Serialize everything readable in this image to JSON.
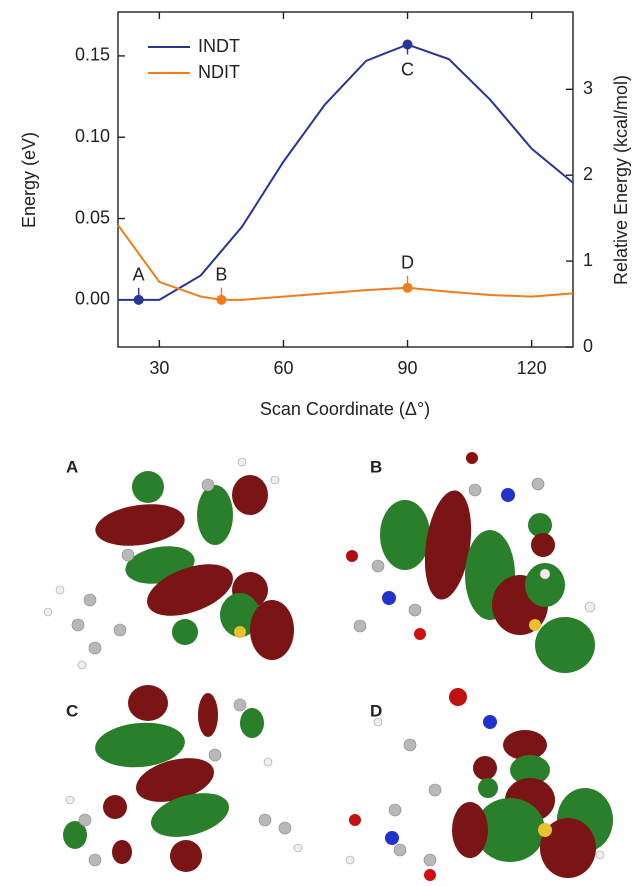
{
  "chart_data": {
    "type": "line",
    "xlabel": "Scan Coordinate (Δ°)",
    "ylabel": "Energy (eV)",
    "y2label": "Relative Energy (kcal/mol)",
    "xlim": [
      20,
      130
    ],
    "xticks": [
      30,
      60,
      90,
      120
    ],
    "ylim": [
      -0.029,
      0.177
    ],
    "yticks": [
      {
        "value": 0,
        "label": "0.00"
      },
      0.05,
      {
        "value": 0.1,
        "label": "0.10"
      },
      0.15
    ],
    "y2lim": [
      0,
      3.9
    ],
    "y2ticks": [
      0,
      1,
      2,
      3
    ],
    "legend": "upper left",
    "series": [
      {
        "name": "INDT",
        "color": "#283593",
        "x": [
          20,
          25,
          30,
          40,
          50,
          60,
          70,
          80,
          90,
          100,
          110,
          120,
          130
        ],
        "values": [
          0,
          0,
          0,
          0.015,
          0.045,
          0.085,
          0.12,
          0.147,
          0.157,
          0.148,
          0.123,
          0.093,
          0.072
        ]
      },
      {
        "name": "NDIT",
        "color": "#f07c1c",
        "x": [
          20,
          30,
          40,
          45,
          50,
          60,
          70,
          80,
          90,
          100,
          110,
          120,
          130
        ],
        "values": [
          0.046,
          0.011,
          0.002,
          0,
          0,
          0.002,
          0.004,
          0.006,
          0.0074,
          0.005,
          0.003,
          0.002,
          0.004
        ]
      }
    ],
    "annotations": [
      {
        "text": "A",
        "x": 25,
        "y": 0,
        "series": 0
      },
      {
        "text": "B",
        "x": 45,
        "y": 0,
        "series": 1
      },
      {
        "text": "C",
        "x": 90,
        "y": 0.157,
        "series": 0
      },
      {
        "text": "D",
        "x": 90,
        "y": 0.0074,
        "series": 1
      }
    ]
  },
  "panel_labels": [
    "A",
    "B",
    "C",
    "D"
  ]
}
